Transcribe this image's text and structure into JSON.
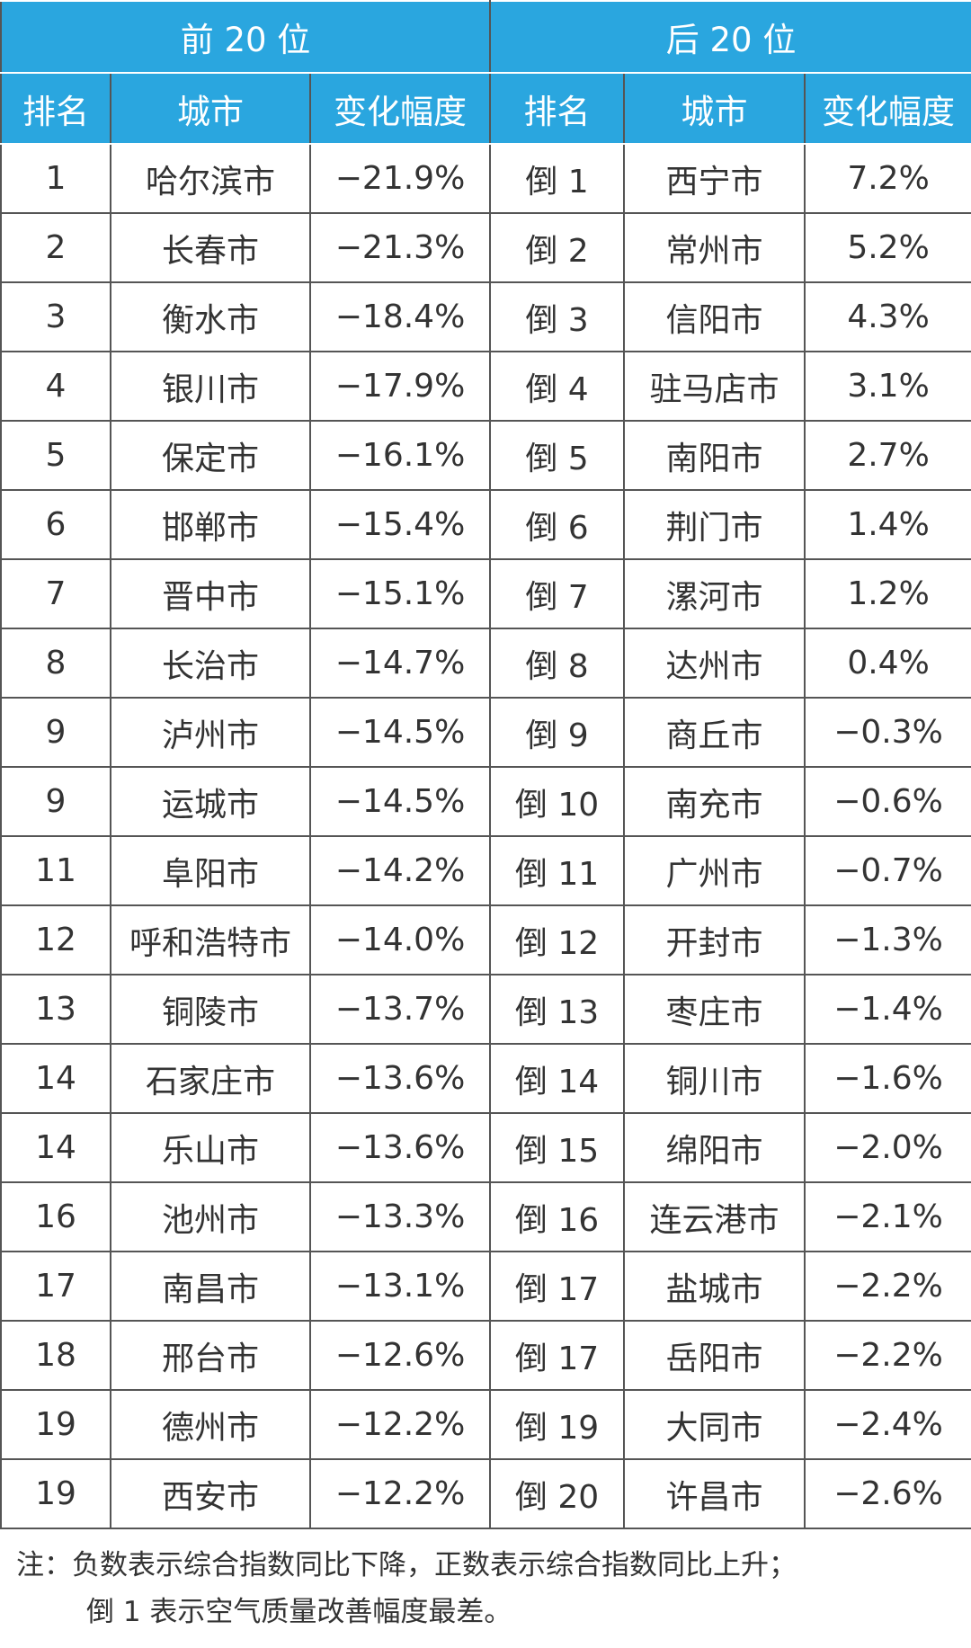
{
  "header": {
    "left": "前 20 位",
    "right": "后 20 位"
  },
  "columns": [
    "排名",
    "城市",
    "变化幅度",
    "排名",
    "城市",
    "变化幅度"
  ],
  "rows": [
    [
      "1",
      "哈尔滨市",
      "−21.9%",
      "倒 1",
      "西宁市",
      "7.2%"
    ],
    [
      "2",
      "长春市",
      "−21.3%",
      "倒 2",
      "常州市",
      "5.2%"
    ],
    [
      "3",
      "衡水市",
      "−18.4%",
      "倒 3",
      "信阳市",
      "4.3%"
    ],
    [
      "4",
      "银川市",
      "−17.9%",
      "倒 4",
      "驻马店市",
      "3.1%"
    ],
    [
      "5",
      "保定市",
      "−16.1%",
      "倒 5",
      "南阳市",
      "2.7%"
    ],
    [
      "6",
      "邯郸市",
      "−15.4%",
      "倒 6",
      "荆门市",
      "1.4%"
    ],
    [
      "7",
      "晋中市",
      "−15.1%",
      "倒 7",
      "漯河市",
      "1.2%"
    ],
    [
      "8",
      "长治市",
      "−14.7%",
      "倒 8",
      "达州市",
      "0.4%"
    ],
    [
      "9",
      "泸州市",
      "−14.5%",
      "倒 9",
      "商丘市",
      "−0.3%"
    ],
    [
      "9",
      "运城市",
      "−14.5%",
      "倒 10",
      "南充市",
      "−0.6%"
    ],
    [
      "11",
      "阜阳市",
      "−14.2%",
      "倒 11",
      "广州市",
      "−0.7%"
    ],
    [
      "12",
      "呼和浩特市",
      "−14.0%",
      "倒 12",
      "开封市",
      "−1.3%"
    ],
    [
      "13",
      "铜陵市",
      "−13.7%",
      "倒 13",
      "枣庄市",
      "−1.4%"
    ],
    [
      "14",
      "石家庄市",
      "−13.6%",
      "倒 14",
      "铜川市",
      "−1.6%"
    ],
    [
      "14",
      "乐山市",
      "−13.6%",
      "倒 15",
      "绵阳市",
      "−2.0%"
    ],
    [
      "16",
      "池州市",
      "−13.3%",
      "倒 16",
      "连云港市",
      "−2.1%"
    ],
    [
      "17",
      "南昌市",
      "−13.1%",
      "倒 17",
      "盐城市",
      "−2.2%"
    ],
    [
      "18",
      "邢台市",
      "−12.6%",
      "倒 17",
      "岳阳市",
      "−2.2%"
    ],
    [
      "19",
      "德州市",
      "−12.2%",
      "倒 19",
      "大同市",
      "−2.4%"
    ],
    [
      "19",
      "西安市",
      "−12.2%",
      "倒 20",
      "许昌市",
      "−2.6%"
    ]
  ],
  "note": [
    "注：负数表示综合指数同比下降，正数表示综合指数同比上升；",
    "倒 1 表示空气质量改善幅度最差。"
  ]
}
